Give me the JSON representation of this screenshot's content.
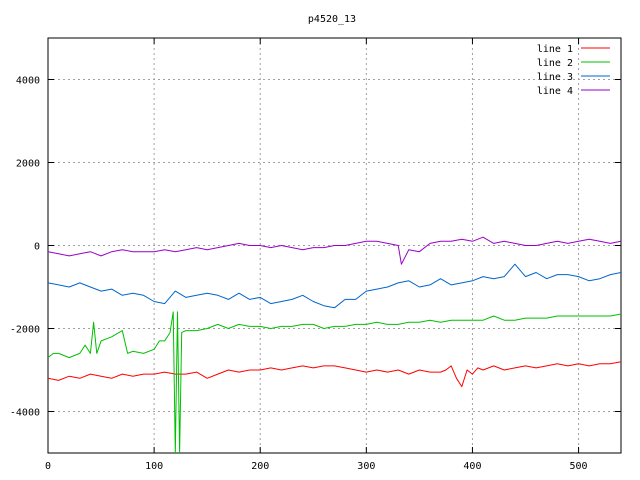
{
  "chart_data": {
    "type": "line",
    "title": "p4520_13",
    "xlabel": "",
    "ylabel": "",
    "xlim": [
      0,
      540
    ],
    "ylim": [
      -5000,
      5000
    ],
    "x_ticks": [
      0,
      100,
      200,
      300,
      400,
      500
    ],
    "y_ticks": [
      -4000,
      -2000,
      0,
      2000,
      4000
    ],
    "grid": true,
    "legend_position": "top-right",
    "series": [
      {
        "name": "line 1",
        "color": "#ff0000",
        "x": [
          0,
          10,
          20,
          30,
          40,
          50,
          60,
          70,
          80,
          90,
          100,
          110,
          120,
          130,
          140,
          150,
          160,
          170,
          180,
          190,
          200,
          210,
          220,
          230,
          240,
          250,
          260,
          270,
          280,
          290,
          300,
          310,
          320,
          330,
          340,
          350,
          360,
          370,
          375,
          380,
          385,
          390,
          395,
          400,
          405,
          410,
          420,
          430,
          440,
          450,
          460,
          470,
          480,
          490,
          500,
          510,
          520,
          530,
          540
        ],
        "y": [
          -3200,
          -3250,
          -3150,
          -3200,
          -3100,
          -3150,
          -3200,
          -3100,
          -3150,
          -3100,
          -3100,
          -3050,
          -3100,
          -3100,
          -3050,
          -3200,
          -3100,
          -3000,
          -3050,
          -3000,
          -3000,
          -2950,
          -3000,
          -2950,
          -2900,
          -2950,
          -2900,
          -2900,
          -2950,
          -3000,
          -3050,
          -3000,
          -3050,
          -3000,
          -3100,
          -3000,
          -3050,
          -3050,
          -3000,
          -2900,
          -3200,
          -3400,
          -3000,
          -3100,
          -2950,
          -3000,
          -2900,
          -3000,
          -2950,
          -2900,
          -2950,
          -2900,
          -2850,
          -2900,
          -2850,
          -2900,
          -2850,
          -2850,
          -2800
        ]
      },
      {
        "name": "line 2",
        "color": "#00c000",
        "x": [
          0,
          5,
          10,
          20,
          30,
          35,
          40,
          43,
          46,
          50,
          60,
          70,
          75,
          80,
          90,
          100,
          105,
          110,
          115,
          118,
          120,
          122,
          124,
          126,
          130,
          140,
          150,
          160,
          170,
          180,
          190,
          200,
          210,
          220,
          230,
          240,
          250,
          260,
          270,
          280,
          290,
          300,
          310,
          320,
          330,
          340,
          350,
          360,
          370,
          380,
          390,
          400,
          410,
          420,
          430,
          440,
          450,
          460,
          470,
          480,
          490,
          500,
          510,
          520,
          530,
          540
        ],
        "y": [
          -2700,
          -2600,
          -2600,
          -2700,
          -2600,
          -2400,
          -2600,
          -1850,
          -2600,
          -2300,
          -2200,
          -2050,
          -2600,
          -2550,
          -2600,
          -2500,
          -2300,
          -2300,
          -2100,
          -1600,
          -5000,
          -1600,
          -5000,
          -2100,
          -2050,
          -2050,
          -2000,
          -1900,
          -2000,
          -1900,
          -1950,
          -1950,
          -2000,
          -1950,
          -1950,
          -1900,
          -1900,
          -2000,
          -1950,
          -1950,
          -1900,
          -1900,
          -1850,
          -1900,
          -1900,
          -1850,
          -1850,
          -1800,
          -1850,
          -1800,
          -1800,
          -1800,
          -1800,
          -1700,
          -1800,
          -1800,
          -1750,
          -1750,
          -1750,
          -1700,
          -1700,
          -1700,
          -1700,
          -1700,
          -1700,
          -1650
        ]
      },
      {
        "name": "line 3",
        "color": "#0066cc",
        "x": [
          0,
          10,
          20,
          30,
          40,
          50,
          60,
          70,
          80,
          90,
          100,
          110,
          120,
          130,
          140,
          150,
          160,
          170,
          180,
          190,
          200,
          210,
          220,
          230,
          240,
          250,
          260,
          270,
          280,
          290,
          300,
          310,
          320,
          330,
          340,
          350,
          360,
          370,
          380,
          390,
          400,
          410,
          420,
          430,
          440,
          450,
          460,
          470,
          480,
          490,
          500,
          510,
          520,
          530,
          540
        ],
        "y": [
          -900,
          -950,
          -1000,
          -900,
          -1000,
          -1100,
          -1050,
          -1200,
          -1150,
          -1200,
          -1350,
          -1400,
          -1100,
          -1250,
          -1200,
          -1150,
          -1200,
          -1300,
          -1150,
          -1300,
          -1250,
          -1400,
          -1350,
          -1300,
          -1200,
          -1350,
          -1450,
          -1500,
          -1300,
          -1300,
          -1100,
          -1050,
          -1000,
          -900,
          -850,
          -1000,
          -950,
          -800,
          -950,
          -900,
          -850,
          -750,
          -800,
          -750,
          -450,
          -750,
          -650,
          -800,
          -700,
          -700,
          -750,
          -850,
          -800,
          -700,
          -650
        ]
      },
      {
        "name": "line 4",
        "color": "#9900cc",
        "x": [
          0,
          10,
          20,
          30,
          40,
          50,
          60,
          70,
          80,
          90,
          100,
          110,
          120,
          130,
          140,
          150,
          160,
          170,
          180,
          190,
          200,
          210,
          220,
          230,
          240,
          250,
          260,
          270,
          280,
          290,
          300,
          310,
          320,
          330,
          333,
          340,
          350,
          360,
          370,
          380,
          390,
          400,
          410,
          420,
          430,
          440,
          450,
          460,
          470,
          480,
          490,
          500,
          510,
          520,
          530,
          540
        ],
        "y": [
          -150,
          -200,
          -250,
          -200,
          -150,
          -250,
          -150,
          -100,
          -150,
          -150,
          -150,
          -100,
          -150,
          -100,
          -50,
          -100,
          -50,
          0,
          50,
          0,
          0,
          -50,
          0,
          -50,
          -100,
          -50,
          -50,
          0,
          0,
          50,
          100,
          100,
          50,
          0,
          -450,
          -100,
          -150,
          50,
          100,
          100,
          150,
          100,
          200,
          50,
          100,
          50,
          0,
          0,
          50,
          100,
          50,
          100,
          150,
          100,
          50,
          100
        ]
      }
    ]
  }
}
